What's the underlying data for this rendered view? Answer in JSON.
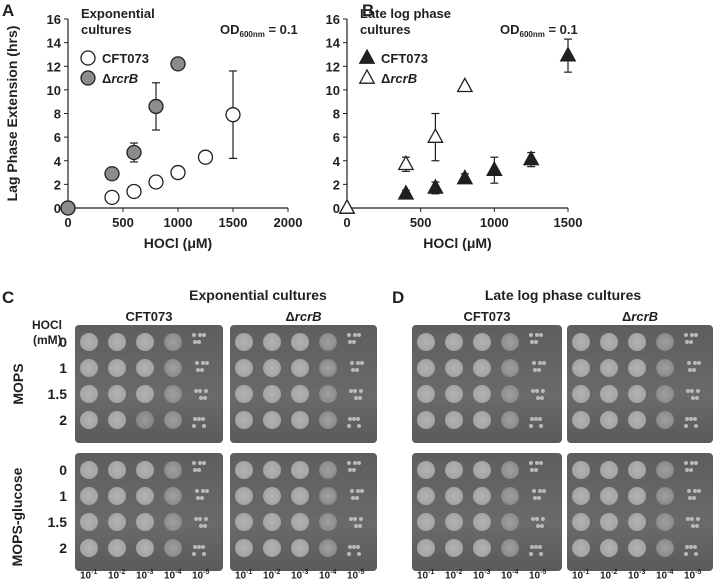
{
  "panels": {
    "a": "A",
    "b": "B",
    "c": "C",
    "d": "D"
  },
  "chart_data": [
    {
      "type": "scatter",
      "panel": "A",
      "title": "Exponential cultures",
      "od_label": "OD",
      "od_sub": "600nm",
      "od_value": " = 0.1",
      "xlabel": "HOCl (μM)",
      "ylabel": "Lag Phase Extension (hrs)",
      "xlim": [
        0,
        2000
      ],
      "ylim": [
        0,
        16
      ],
      "xticks": [
        0,
        500,
        1000,
        1500,
        2000
      ],
      "yticks": [
        0,
        2,
        4,
        6,
        8,
        10,
        12,
        14,
        16
      ],
      "legend_position": "top-left",
      "series": [
        {
          "name": "CFT073",
          "marker": "circle",
          "fill": "#ffffff",
          "x": [
            0,
            400,
            600,
            800,
            1000,
            1250,
            1500
          ],
          "y": [
            0,
            0.9,
            1.4,
            2.2,
            3.0,
            4.3,
            7.9
          ],
          "err": [
            0,
            0,
            0,
            0,
            0,
            0,
            3.7
          ]
        },
        {
          "name": "ΔrcrB",
          "marker": "circle",
          "fill": "#8c8c8c",
          "x": [
            0,
            400,
            600,
            800,
            1000
          ],
          "y": [
            0,
            2.9,
            4.7,
            8.6,
            12.2
          ],
          "err": [
            0,
            0,
            0.8,
            2.0,
            0
          ]
        }
      ]
    },
    {
      "type": "scatter",
      "panel": "B",
      "title_line1": "Late log phase",
      "title_line2": "cultures",
      "od_label": "OD",
      "od_sub": "600nm",
      "od_value": " = 0.1",
      "xlabel": "HOCl (μM)",
      "xlim": [
        0,
        1500
      ],
      "ylim": [
        0,
        16
      ],
      "xticks": [
        0,
        500,
        1000,
        1500
      ],
      "yticks": [
        0,
        2,
        4,
        6,
        8,
        10,
        12,
        14,
        16
      ],
      "legend_position": "top-left",
      "series": [
        {
          "name": "CFT073",
          "marker": "triangle",
          "fill": "#231f20",
          "x": [
            0,
            400,
            600,
            800,
            1000,
            1250,
            1500
          ],
          "y": [
            0,
            1.2,
            1.7,
            2.5,
            3.2,
            4.1,
            12.9
          ],
          "err": [
            0,
            0.3,
            0.5,
            0.4,
            1.1,
            0.6,
            1.4
          ]
        },
        {
          "name": "ΔrcrB",
          "marker": "triangle",
          "fill": "#ffffff",
          "x": [
            0,
            400,
            600,
            800
          ],
          "y": [
            0,
            3.7,
            6.0,
            10.3
          ],
          "err": [
            0,
            0.6,
            2.0,
            0
          ]
        }
      ]
    }
  ],
  "plates": {
    "hocl_header": "HOCl",
    "hocl_unit": "(mM)",
    "concentrations": [
      "0",
      "1",
      "1.5",
      "2"
    ],
    "media": [
      "MOPS",
      "MOPS-glucose"
    ],
    "sections": [
      "Exponential cultures",
      "Late log phase cultures"
    ],
    "strains": [
      "CFT073",
      "ΔrcrB"
    ],
    "dilution_base": "10",
    "dilution_exp": [
      "-1",
      "-2",
      "-3",
      "-4",
      "-5"
    ]
  }
}
